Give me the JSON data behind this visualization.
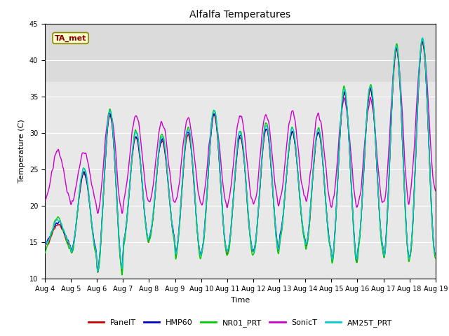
{
  "title": "Alfalfa Temperatures",
  "xlabel": "Time",
  "ylabel": "Temperature (C)",
  "ylim": [
    10,
    45
  ],
  "xlim": [
    0,
    15
  ],
  "background_color": "#ffffff",
  "plot_bg_color": "#e8e8e8",
  "gray_band_upper": [
    37,
    45
  ],
  "gray_band_color": "#d0d0d0",
  "lines": {
    "PanelT": {
      "color": "#cc0000",
      "lw": 1.0
    },
    "HMP60": {
      "color": "#0000cc",
      "lw": 1.0
    },
    "NR01_PRT": {
      "color": "#00cc00",
      "lw": 1.0
    },
    "SonicT": {
      "color": "#cc00cc",
      "lw": 1.0
    },
    "AM25T_PRT": {
      "color": "#00cccc",
      "lw": 1.0
    }
  },
  "x_tick_labels": [
    "Aug 4",
    "Aug 5",
    "Aug 6",
    "Aug 7",
    "Aug 8",
    "Aug 9",
    "Aug 10",
    "Aug 11",
    "Aug 12",
    "Aug 13",
    "Aug 14",
    "Aug 15",
    "Aug 16",
    "Aug 17",
    "Aug 18",
    "Aug 19"
  ],
  "annotation_text": "TA_met",
  "annotation_color": "#880000",
  "annotation_bg": "#ffffcc",
  "annotation_border": "#888800"
}
